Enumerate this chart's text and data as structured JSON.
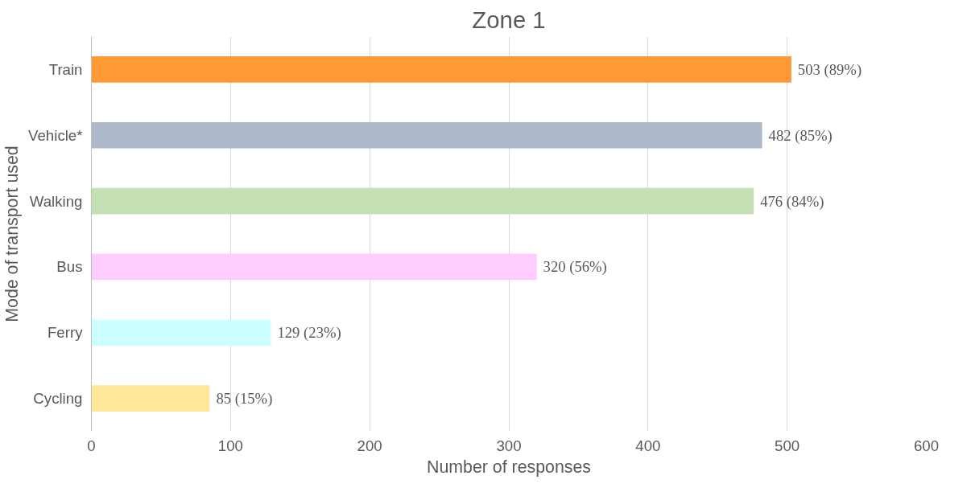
{
  "chart_data": {
    "type": "bar",
    "orientation": "horizontal",
    "title": "Zone 1",
    "xlabel": "Number of responses",
    "ylabel": "Mode of transport used",
    "categories": [
      "Train",
      "Vehicle*",
      "Walking",
      "Bus",
      "Ferry",
      "Cycling"
    ],
    "values": [
      503,
      482,
      476,
      320,
      129,
      85
    ],
    "colors": [
      "#ff9933",
      "#adb9ca",
      "#c5e0b4",
      "#ffccff",
      "#ccffff",
      "#ffe699"
    ],
    "value_labels": [
      "503 (89%)",
      "482 (85%)",
      "476 (84%)",
      "320 (56%)",
      "129 (23%)",
      "85 (15%)"
    ],
    "xlim": [
      0,
      600
    ],
    "xticks": [
      0,
      100,
      200,
      300,
      400,
      500,
      600
    ],
    "grid": "x"
  }
}
